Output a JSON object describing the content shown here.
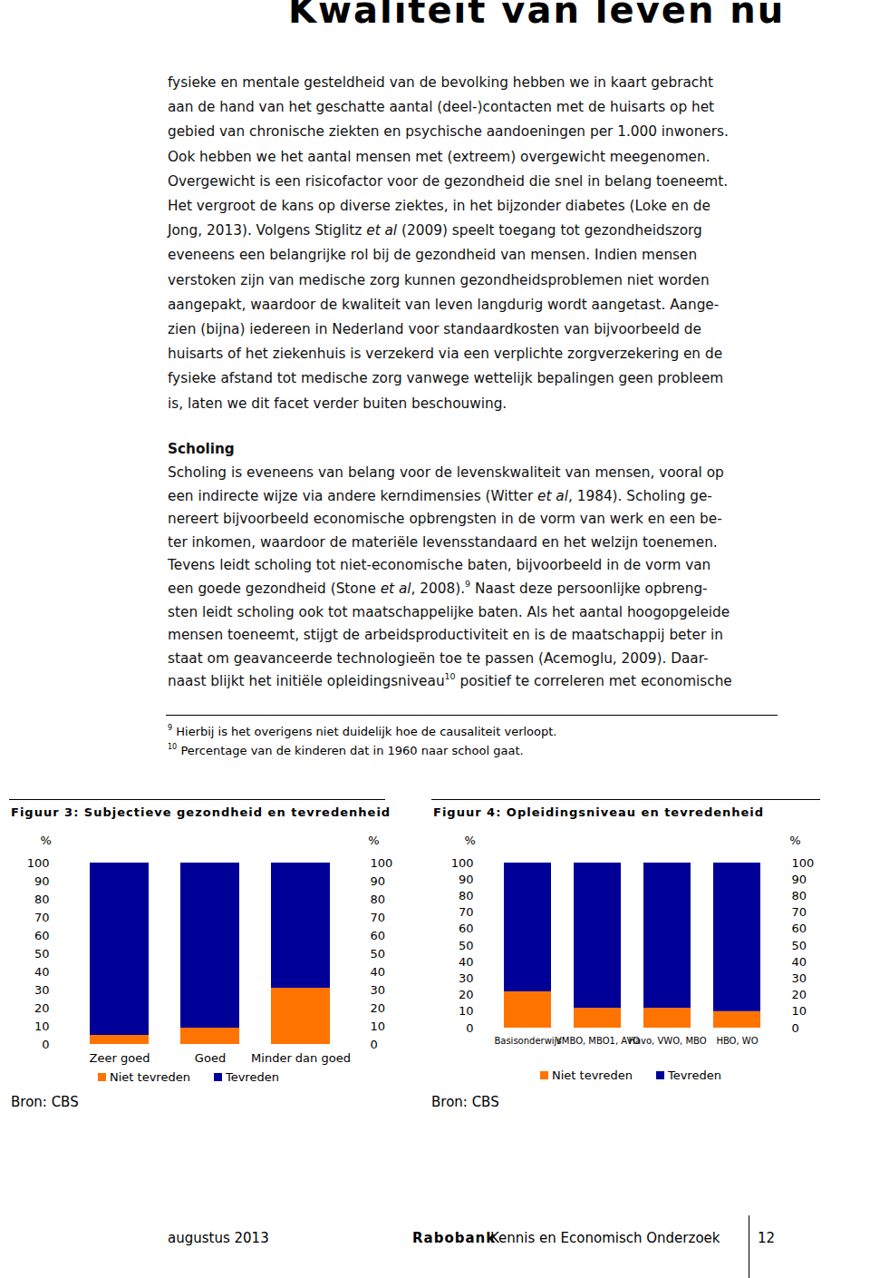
{
  "header": {
    "title": "Kwaliteit van leven nu"
  },
  "body": {
    "lines": [
      [
        "fysieke en mentale gesteldheid van de bevolking hebben we in kaart gebracht"
      ],
      [
        "aan de hand van het geschatte aantal (deel-)contacten met de huisarts op het"
      ],
      [
        "gebied van chronische ziekten en psychische aandoeningen per 1.000 inwoners."
      ],
      [
        "Ook hebben we het aantal mensen met (extreem) overgewicht meegenomen."
      ],
      [
        "Overgewicht is een risicofactor voor de gezondheid die snel in belang toeneemt."
      ],
      [
        "Het vergroot de kans op diverse ziektes, in het bijzonder diabetes (Loke en de"
      ],
      [
        "Jong, 2013). Volgens Stiglitz ",
        {
          "italic": "et al"
        },
        " (2009) speelt toegang tot gezondheidszorg"
      ],
      [
        "eveneens een belangrijke rol bij de gezondheid van mensen. Indien mensen"
      ],
      [
        "verstoken zijn van medische zorg kunnen gezondheidsproblemen niet worden"
      ],
      [
        "aangepakt, waardoor de kwaliteit van leven langdurig wordt aangetast. Aange-"
      ],
      [
        "zien (bijna) iedereen in Nederland voor standaardkosten van bijvoorbeeld de"
      ],
      [
        "huisarts of het ziekenhuis is verzekerd via een verplichte zorgverzekering en de"
      ],
      [
        "fysieke afstand tot medische zorg vanwege wettelijk bepalingen geen probleem"
      ],
      [
        "is, laten we dit facet verder buiten beschouwing."
      ]
    ]
  },
  "section": {
    "heading": "Scholing",
    "lines": [
      [
        "Scholing is eveneens van belang voor de levenskwaliteit van mensen, vooral op"
      ],
      [
        "een indirecte wijze via andere kerndimensies (Witter ",
        {
          "italic": "et al"
        },
        ", 1984). Scholing ge-"
      ],
      [
        "nereert bijvoorbeeld economische opbrengsten in de vorm van werk en een be-"
      ],
      [
        "ter inkomen, waardoor de materiële levensstandaard en het welzijn toenemen."
      ],
      [
        "Tevens leidt scholing tot niet-economische baten, bijvoorbeeld in de vorm van"
      ],
      [
        "een goede gezondheid (Stone ",
        {
          "italic": "et al"
        },
        ", 2008).",
        {
          "sup": "9"
        },
        " Naast deze persoonlijke opbreng-"
      ],
      [
        "sten leidt scholing ook tot maatschappelijke baten. Als het aantal hoogopgeleide"
      ],
      [
        "mensen toeneemt, stijgt de arbeidsproductiviteit en is de maatschappij beter in"
      ],
      [
        "staat om geavanceerde technologieën toe te passen (Acemoglu, 2009). Daar-"
      ],
      [
        "naast blijkt het initiële opleidingsniveau",
        {
          "sup": "10"
        },
        " positief te correleren met economische"
      ]
    ]
  },
  "footnotes": [
    {
      "number": 9,
      "text": "Hierbij is het overigens niet duidelijk hoe de causaliteit verloopt."
    },
    {
      "number": 10,
      "text": "Percentage van de kinderen dat in 1960 naar school gaat."
    }
  ],
  "chart_data": [
    {
      "type": "bar",
      "title": "Figuur 3: Subjectieve gezondheid en tevredenheid",
      "categories": [
        "Zeer goed",
        "Goed",
        "Minder dan goed"
      ],
      "series": [
        {
          "name": "Niet tevreden",
          "color": "#ff7300",
          "values": [
            5,
            9,
            31
          ]
        },
        {
          "name": "Tevreden",
          "color": "#000099",
          "values": [
            95,
            91,
            69
          ]
        }
      ],
      "stacked": true,
      "ylabel": "%",
      "ylim": [
        0,
        100
      ],
      "yticks": [
        0,
        10,
        20,
        30,
        40,
        50,
        60,
        70,
        80,
        90,
        100
      ],
      "y2label": "%",
      "y2lim": [
        0,
        100
      ],
      "y2ticks": [
        0,
        10,
        20,
        30,
        40,
        50,
        60,
        70,
        80,
        90,
        100
      ],
      "grid": false,
      "legend": "bottom",
      "source": "Bron: CBS"
    },
    {
      "type": "bar",
      "title": "Figuur 4: Opleidingsniveau en tevredenheid",
      "categories": [
        "Basisonderwijs",
        "VMBO, MBO1, AVO",
        "Havo, VWO, MBO",
        "HBO, WO"
      ],
      "series": [
        {
          "name": "Niet tevreden",
          "color": "#ff7300",
          "values": [
            22,
            12,
            12,
            10
          ]
        },
        {
          "name": "Tevreden",
          "color": "#000099",
          "values": [
            78,
            88,
            88,
            90
          ]
        }
      ],
      "stacked": true,
      "ylabel": "%",
      "ylim": [
        0,
        100
      ],
      "yticks": [
        0,
        10,
        20,
        30,
        40,
        50,
        60,
        70,
        80,
        90,
        100
      ],
      "y2label": "%",
      "y2lim": [
        0,
        100
      ],
      "y2ticks": [
        0,
        10,
        20,
        30,
        40,
        50,
        60,
        70,
        80,
        90,
        100
      ],
      "grid": false,
      "legend": "bottom",
      "source": "Bron: CBS"
    }
  ],
  "footer": {
    "date": "augustus 2013",
    "brand": "Rabobank",
    "department": "Kennis en Economisch Onderzoek",
    "page": 12
  }
}
